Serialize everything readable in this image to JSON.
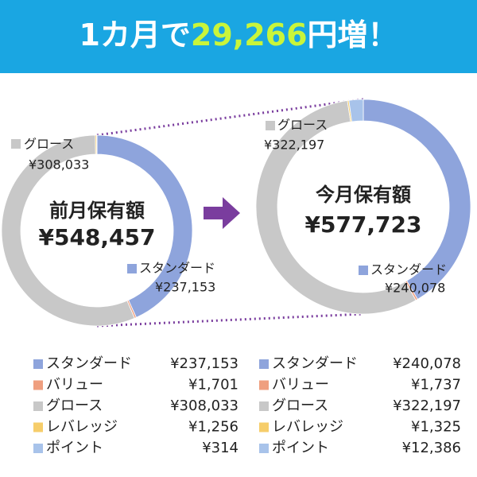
{
  "header": {
    "title_parts": [
      "1カ月で",
      "29,266",
      "円増！"
    ]
  },
  "chart_data": [
    {
      "type": "donut",
      "center_title": "前月保有額",
      "center_value": "¥548,457",
      "categories": [
        "スタンダード",
        "バリュー",
        "グロース",
        "レバレッジ",
        "ポイント"
      ],
      "colors": [
        "#8ea4dc",
        "#ef9f7f",
        "#c8c8c8",
        "#f6cd6a",
        "#a8c3ea"
      ],
      "values": [
        237153,
        1701,
        308033,
        1256,
        314
      ],
      "value_labels": [
        "¥237,153",
        "¥1,701",
        "¥308,033",
        "¥1,256",
        "¥314"
      ]
    },
    {
      "type": "donut",
      "center_title": "今月保有額",
      "center_value": "¥577,723",
      "categories": [
        "スタンダード",
        "バリュー",
        "グロース",
        "レバレッジ",
        "ポイント"
      ],
      "colors": [
        "#8ea4dc",
        "#ef9f7f",
        "#c8c8c8",
        "#f6cd6a",
        "#a8c3ea"
      ],
      "values": [
        240078,
        1737,
        322197,
        1325,
        12386
      ],
      "value_labels": [
        "¥240,078",
        "¥1,737",
        "¥322,197",
        "¥1,325",
        "¥12,386"
      ]
    }
  ]
}
